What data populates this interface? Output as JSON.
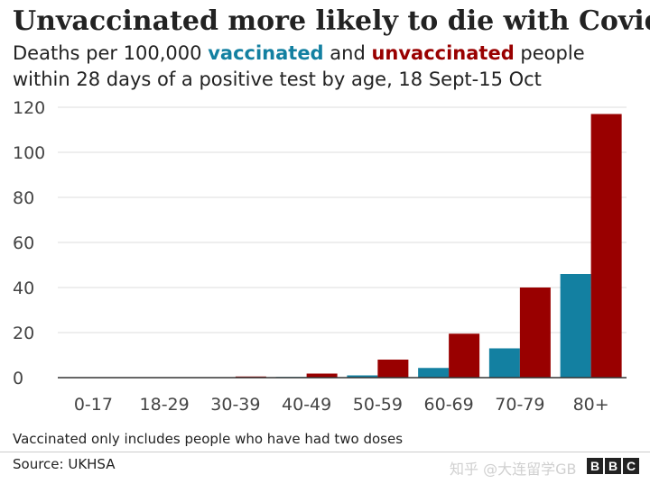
{
  "title": "Unvaccinated more likely to die with Covid",
  "subtitle": {
    "prefix": "Deaths per 100,000 ",
    "vaccinated_word": "vaccinated",
    "middle": " and ",
    "unvaccinated_word": "unvaccinated",
    "line_end": " people",
    "line2": "within 28 days of a positive test by age, 18 Sept-15 Oct"
  },
  "footnote": "Vaccinated only includes people who have had two doses",
  "source": "Source: UKHSA",
  "watermark": "知乎 @大连留学GB ",
  "logo_letters": [
    "B",
    "B",
    "C"
  ],
  "colors": {
    "vaccinated": "#1380A1",
    "unvaccinated": "#990000",
    "grid": "#dddddd",
    "axis": "#333333",
    "tick_text": "#444444"
  },
  "chart_data": {
    "type": "bar",
    "categories": [
      "0-17",
      "18-29",
      "30-39",
      "40-49",
      "50-59",
      "60-69",
      "70-79",
      "80+"
    ],
    "series": [
      {
        "name": "vaccinated",
        "values": [
          0,
          0,
          0,
          0.3,
          1,
          4.3,
          13,
          46
        ]
      },
      {
        "name": "unvaccinated",
        "values": [
          0,
          0,
          0.5,
          1.8,
          8,
          19.5,
          40,
          117
        ]
      }
    ],
    "ylim": [
      0,
      120
    ],
    "yticks": [
      0,
      20,
      40,
      60,
      80,
      100,
      120
    ],
    "grid": true,
    "title": "Unvaccinated more likely to die with Covid",
    "xlabel": "",
    "ylabel": ""
  }
}
